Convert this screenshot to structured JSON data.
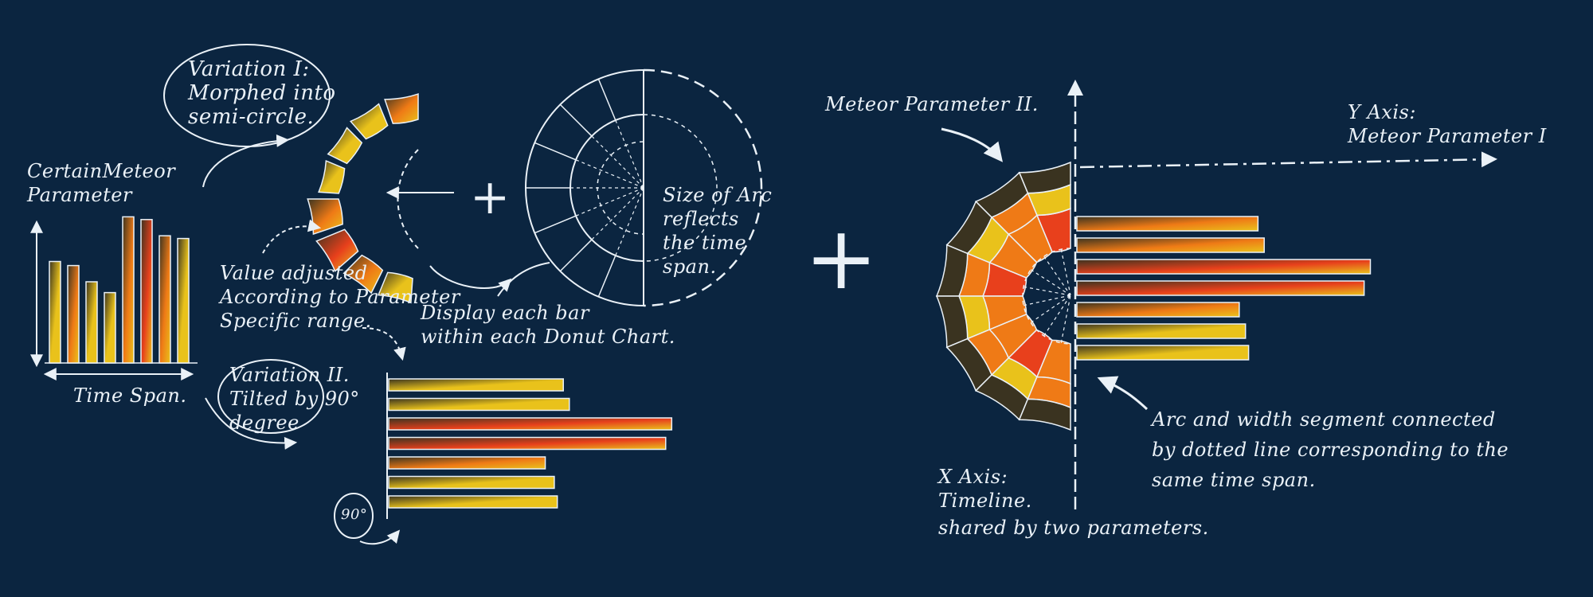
{
  "texts": {
    "certain_meteor_parameter": "CertainMeteor\nParameter",
    "time_span": "Time Span.",
    "variation1": "Variation I:\nMorphed into\nsemi-circle.",
    "value_adjusted": "Value adjusted\nAccording to Parameter\nSpecific range.",
    "variation2": "Variation II.\nTilted by 90°\ndegree",
    "angle_label": "90°",
    "size_of_arc": "Size of Arc\nreflects\nthe time\nspan.",
    "display_each_bar": "Display each bar\nwithin each Donut Chart.",
    "meteor_parameter_2": "Meteor Parameter II.",
    "y_axis": "Y Axis:\nMeteor Parameter I",
    "arc_and_width": "Arc and width segment connected\nby dotted line corresponding to the\nsame time span.",
    "x_axis": "X Axis:\nTimeline.",
    "shared_by": "shared by two parameters."
  },
  "symbols": {
    "plus_left": "+",
    "plus_right": "+"
  },
  "colors": {
    "background": "#0b2540",
    "ink": "#eaf1f7",
    "yellow": "#e9c21b",
    "orange": "#ef7a16",
    "red": "#e8401c",
    "dark": "#3a3320"
  },
  "bar_chart": {
    "note": "",
    "values": [
      7.5,
      7.2,
      6.0,
      5.2,
      10.8,
      10.6,
      9.4,
      9.2
    ],
    "accent": [
      "yellow",
      "orange",
      "yellow",
      "yellow",
      "orange",
      "red",
      "orange",
      "yellow"
    ]
  },
  "semicircle_segments": [
    {
      "level": 0.55,
      "color": "orange"
    },
    {
      "level": 0.45,
      "color": "yellow"
    },
    {
      "level": 0.35,
      "color": "yellow"
    },
    {
      "level": 0.3,
      "color": "yellow"
    },
    {
      "level": 0.8,
      "color": "orange"
    },
    {
      "level": 0.78,
      "color": "red"
    },
    {
      "level": 0.55,
      "color": "orange"
    },
    {
      "level": 0.5,
      "color": "yellow"
    }
  ],
  "tilted_bars": [
    {
      "value": 0.58,
      "color": "yellow"
    },
    {
      "value": 0.6,
      "color": "yellow"
    },
    {
      "value": 0.94,
      "color": "red"
    },
    {
      "value": 0.92,
      "color": "red"
    },
    {
      "value": 0.52,
      "color": "orange"
    },
    {
      "value": 0.55,
      "color": "yellow"
    },
    {
      "value": 0.56,
      "color": "yellow"
    }
  ],
  "composite_bars": [
    {
      "value": 0.58,
      "color": "orange"
    },
    {
      "value": 0.6,
      "color": "orange"
    },
    {
      "value": 0.94,
      "color": "red"
    },
    {
      "value": 0.92,
      "color": "red"
    },
    {
      "value": 0.52,
      "color": "orange"
    },
    {
      "value": 0.54,
      "color": "yellow"
    },
    {
      "value": 0.55,
      "color": "yellow"
    }
  ]
}
